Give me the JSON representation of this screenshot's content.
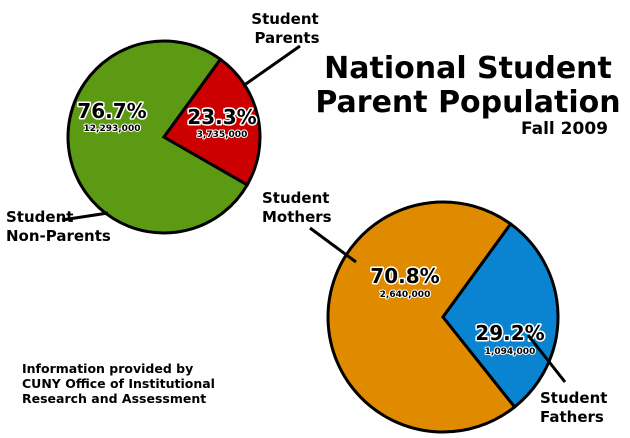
{
  "title_line1": "National Student",
  "title_line2": "Parent Population",
  "subtitle": "Fall 2009",
  "source": [
    "Information provided by",
    "CUNY Office of Institutional",
    "Research and Assessment"
  ],
  "chart_data": [
    {
      "type": "pie",
      "slices": [
        {
          "label_lines": [
            "Student",
            "Non-Parents"
          ],
          "percent_label": "76.7%",
          "count_label": "12,293,000",
          "value": 12293000,
          "color": "#5c9a13"
        },
        {
          "label_lines": [
            "Student",
            "Parents"
          ],
          "percent_label": "23.3%",
          "count_label": "3,735,000",
          "value": 3735000,
          "color": "#cc0000"
        }
      ]
    },
    {
      "type": "pie",
      "slices": [
        {
          "label_lines": [
            "Student",
            "Mothers"
          ],
          "percent_label": "70.8%",
          "count_label": "2,640,000",
          "value": 2640000,
          "color": "#e08a00"
        },
        {
          "label_lines": [
            "Student",
            "Fathers"
          ],
          "percent_label": "29.2%",
          "count_label": "1,094,000",
          "value": 1094000,
          "color": "#0a84d0"
        }
      ]
    }
  ]
}
